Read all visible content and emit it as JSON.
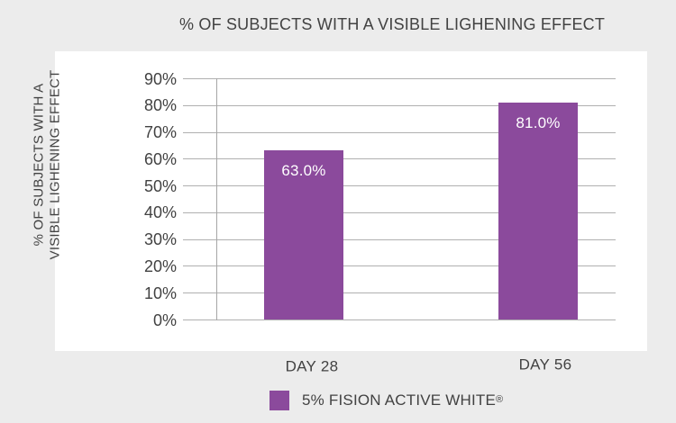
{
  "chart_data": {
    "type": "bar",
    "title": "% OF SUBJECTS WITH A VISIBLE LIGHENING EFFECT",
    "ylabel_lines": [
      "% OF SUBJECTS WITH A",
      "VISIBLE LIGHENING EFFECT"
    ],
    "xlabel": "",
    "categories": [
      "DAY 28",
      "DAY 56"
    ],
    "series": [
      {
        "name": "5% FISION ACTIVE WHITE®",
        "values": [
          63.0,
          81.0
        ]
      }
    ],
    "value_labels": [
      "63.0%",
      "81.0%"
    ],
    "y_ticks": [
      "0%",
      "10%",
      "20%",
      "30%",
      "40%",
      "50%",
      "60%",
      "70%",
      "80%",
      "90%"
    ],
    "ylim": [
      0,
      90
    ],
    "grid": true,
    "legend_position": "bottom",
    "colors": {
      "bar": "#8b4a9c",
      "grid": "#b0b0b0",
      "axis": "#a6a6a6",
      "text": "#424242",
      "value_label_text": "#ffffff",
      "background": "#ececec",
      "panel": "#ffffff"
    }
  },
  "legend": {
    "label": "5% FISION ACTIVE WHITE",
    "reg_mark": "®"
  }
}
